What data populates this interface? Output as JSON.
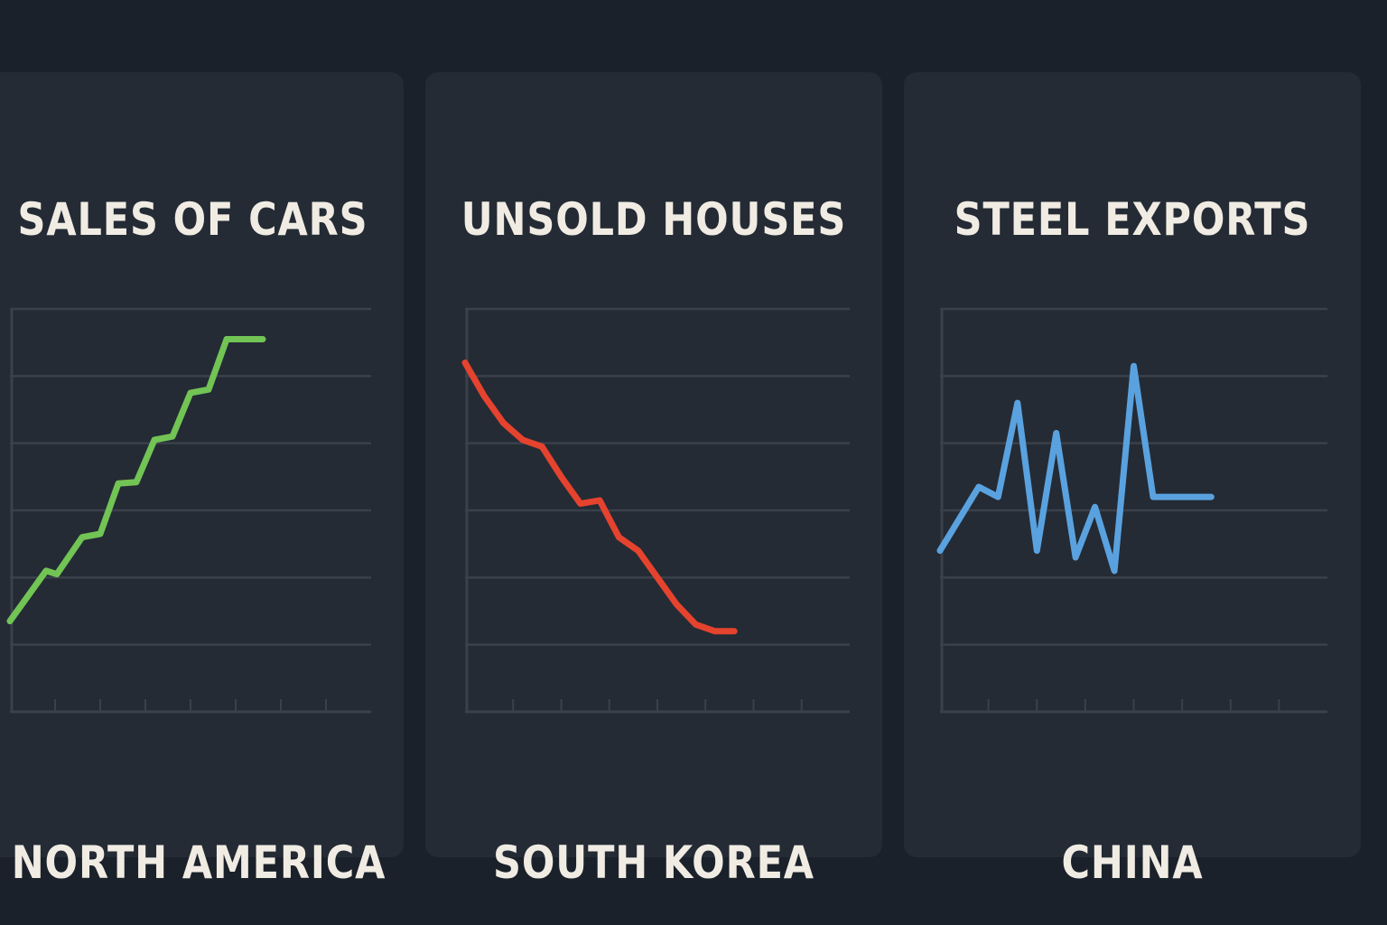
{
  "colors": {
    "background": "#1b212a",
    "panel": "#242b35",
    "grid": "#3a414b",
    "text": "#f1ece3"
  },
  "chart_data": [
    {
      "type": "line",
      "title": "SALES OF CARS",
      "caption": "NORTH AMERICA",
      "color": "#72c454",
      "xlim": [
        0,
        10
      ],
      "ylim": [
        0,
        6
      ],
      "x": [
        0,
        1,
        1.3,
        2,
        2.5,
        3,
        3.5,
        4,
        4.5,
        5,
        5.5,
        6,
        6.5,
        7
      ],
      "y": [
        1.35,
        2.1,
        2.05,
        2.6,
        2.65,
        3.4,
        3.42,
        4.05,
        4.1,
        4.75,
        4.8,
        5.55,
        5.55,
        5.55
      ]
    },
    {
      "type": "line",
      "title": "UNSOLD HOUSES",
      "caption": "SOUTH KOREA",
      "color": "#e5432e",
      "xlim": [
        0,
        10
      ],
      "ylim": [
        0,
        6
      ],
      "x": [
        0,
        0.5,
        1,
        1.5,
        2,
        2.5,
        3,
        3.5,
        4,
        4.5,
        5,
        5.5,
        6,
        6.5,
        7
      ],
      "y": [
        5.2,
        4.7,
        4.3,
        4.05,
        3.95,
        3.5,
        3.1,
        3.15,
        2.6,
        2.4,
        2.0,
        1.6,
        1.3,
        1.2,
        1.2
      ]
    },
    {
      "type": "line",
      "title": "STEEL EXPORTS",
      "caption": "CHINA",
      "color": "#5aa2df",
      "xlim": [
        0,
        10
      ],
      "ylim": [
        0,
        6
      ],
      "x": [
        0,
        1,
        1.5,
        2,
        2.5,
        3,
        3.5,
        4,
        4.5,
        5,
        5.5,
        6,
        6.5,
        7
      ],
      "y": [
        2.4,
        3.35,
        3.2,
        4.6,
        2.4,
        4.15,
        2.3,
        3.05,
        2.1,
        5.15,
        3.2,
        3.2,
        3.2,
        3.2
      ]
    }
  ]
}
